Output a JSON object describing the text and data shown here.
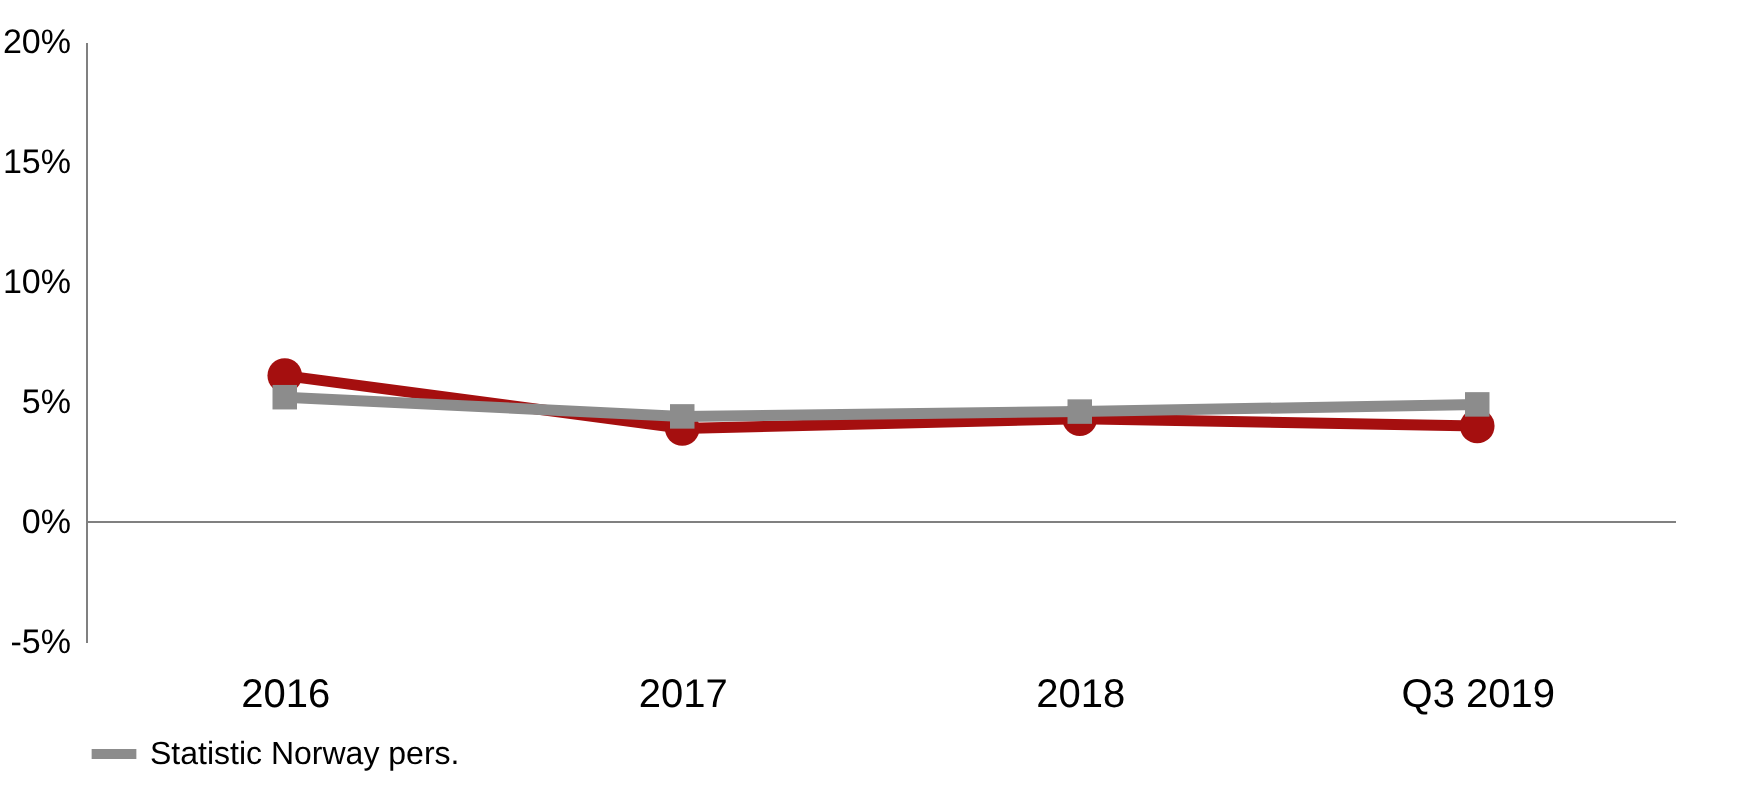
{
  "chart_data": {
    "type": "line",
    "categories": [
      "2016",
      "2017",
      "2018",
      "Q3 2019"
    ],
    "series": [
      {
        "color": "#a50f0f",
        "marker": "circle",
        "values": [
          6.1,
          3.9,
          4.3,
          4.0
        ]
      },
      {
        "name": "Statistic Norway pers.",
        "color": "#8c8c8c",
        "marker": "square",
        "values": [
          5.2,
          4.4,
          4.6,
          4.9
        ]
      }
    ],
    "ylim": [
      -5,
      20
    ],
    "yticks": [
      {
        "value": -5,
        "label": "-5%"
      },
      {
        "value": 0,
        "label": "0%"
      },
      {
        "value": 5,
        "label": "5%"
      },
      {
        "value": 10,
        "label": "10%"
      },
      {
        "value": 15,
        "label": "15%"
      },
      {
        "value": 20,
        "label": "20%"
      }
    ],
    "ref_lines": [
      {
        "axis": "y",
        "value": 0,
        "color": "#808080"
      }
    ],
    "grid": false,
    "legend": "bottom",
    "line_style": "solid"
  }
}
